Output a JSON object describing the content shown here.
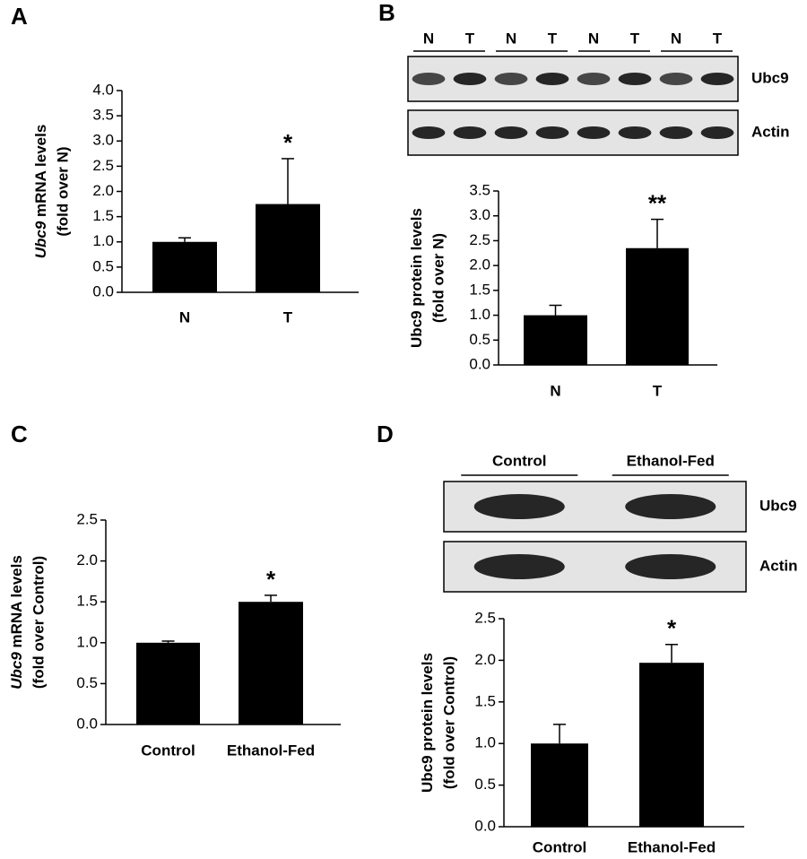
{
  "chart_data": [
    {
      "type": "bar",
      "panel": "A",
      "ylabel": {
        "italic": "Ubc9",
        "rest": " mRNA levels",
        "line2": "(fold over N)"
      },
      "categories": [
        "N",
        "T"
      ],
      "values": [
        1.0,
        1.75
      ],
      "errors": [
        0.08,
        0.9
      ],
      "color": "#000000",
      "annotation": "*",
      "ylim": [
        0,
        4
      ],
      "yticks": [
        {
          "value": 0,
          "label": "0.0"
        },
        {
          "value": 0.5,
          "label": "0.5"
        },
        {
          "value": 1,
          "label": "1.0"
        },
        {
          "value": 1.5,
          "label": "1.5"
        },
        {
          "value": 2,
          "label": "2.0"
        },
        {
          "value": 2.5,
          "label": "2.5"
        },
        {
          "value": 3,
          "label": "3.0"
        },
        {
          "value": 3.5,
          "label": "3.5"
        },
        {
          "value": 4,
          "label": "4.0"
        }
      ]
    },
    {
      "type": "bar",
      "panel": "B",
      "ylabel": {
        "italic": "",
        "rest": "Ubc9 protein levels",
        "line2": "(fold over N)"
      },
      "blot": {
        "lanes": [
          "N",
          "T",
          "N",
          "T",
          "N",
          "T",
          "N",
          "T"
        ],
        "rows": [
          "Ubc9",
          "Actin"
        ]
      },
      "categories": [
        "N",
        "T"
      ],
      "values": [
        1.0,
        2.35
      ],
      "errors": [
        0.2,
        0.58
      ],
      "color": "#000000",
      "annotation": "**",
      "ylim": [
        0,
        3.5
      ],
      "yticks": [
        {
          "value": 0,
          "label": "0.0"
        },
        {
          "value": 0.5,
          "label": "0.5"
        },
        {
          "value": 1,
          "label": "1.0"
        },
        {
          "value": 1.5,
          "label": "1.5"
        },
        {
          "value": 2,
          "label": "2.0"
        },
        {
          "value": 2.5,
          "label": "2.5"
        },
        {
          "value": 3,
          "label": "3.0"
        },
        {
          "value": 3.5,
          "label": "3.5"
        }
      ]
    },
    {
      "type": "bar",
      "panel": "C",
      "ylabel": {
        "italic": "Ubc9",
        "rest": " mRNA levels",
        "line2": "(fold over Control)"
      },
      "categories": [
        "Control",
        "Ethanol-Fed"
      ],
      "values": [
        1.0,
        1.5
      ],
      "errors": [
        0.02,
        0.08
      ],
      "color": "#000000",
      "annotation": "*",
      "ylim": [
        0,
        2.5
      ],
      "yticks": [
        {
          "value": 0,
          "label": "0.0"
        },
        {
          "value": 0.5,
          "label": "0.5"
        },
        {
          "value": 1,
          "label": "1.0"
        },
        {
          "value": 1.5,
          "label": "1.5"
        },
        {
          "value": 2,
          "label": "2.0"
        },
        {
          "value": 2.5,
          "label": "2.5"
        }
      ]
    },
    {
      "type": "bar",
      "panel": "D",
      "ylabel": {
        "italic": "",
        "rest": "Ubc9 protein levels",
        "line2": "(fold over Control)"
      },
      "blot": {
        "groups": [
          "Control",
          "Ethanol-Fed"
        ],
        "rows": [
          "Ubc9",
          "Actin"
        ]
      },
      "categories": [
        "Control",
        "Ethanol-Fed"
      ],
      "values": [
        1.0,
        1.97
      ],
      "errors": [
        0.23,
        0.22
      ],
      "color": "#000000",
      "annotation": "*",
      "ylim": [
        0,
        2.5
      ],
      "yticks": [
        {
          "value": 0,
          "label": "0.0"
        },
        {
          "value": 0.5,
          "label": "0.5"
        },
        {
          "value": 1,
          "label": "1.0"
        },
        {
          "value": 1.5,
          "label": "1.5"
        },
        {
          "value": 2,
          "label": "2.0"
        },
        {
          "value": 2.5,
          "label": "2.5"
        }
      ]
    }
  ]
}
